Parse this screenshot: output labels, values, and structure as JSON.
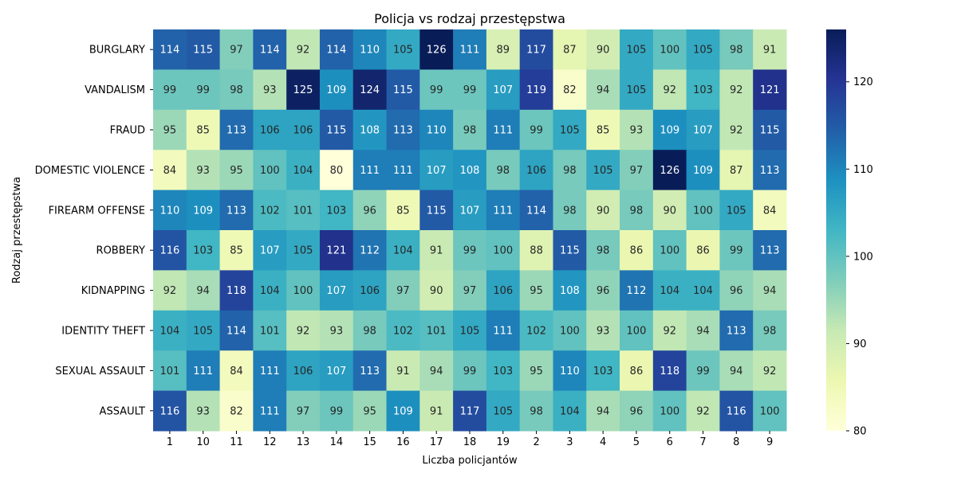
{
  "chart_data": {
    "type": "heatmap",
    "title": "Policja vs rodzaj przestępstwa",
    "xlabel": "Liczba policjantów",
    "ylabel": "Rodzaj przestępstwa",
    "x": [
      "1",
      "10",
      "11",
      "12",
      "13",
      "14",
      "15",
      "16",
      "17",
      "18",
      "19",
      "2",
      "3",
      "4",
      "5",
      "6",
      "7",
      "8",
      "9"
    ],
    "y": [
      "BURGLARY",
      "VANDALISM",
      "FRAUD",
      "DOMESTIC VIOLENCE",
      "FIREARM OFFENSE",
      "ROBBERY",
      "KIDNAPPING",
      "IDENTITY THEFT",
      "SEXUAL ASSAULT",
      "ASSAULT"
    ],
    "values": [
      [
        114,
        115,
        97,
        114,
        92,
        114,
        110,
        105,
        126,
        111,
        89,
        117,
        87,
        90,
        105,
        100,
        105,
        98,
        91
      ],
      [
        99,
        99,
        98,
        93,
        125,
        109,
        124,
        115,
        99,
        99,
        107,
        119,
        82,
        94,
        105,
        92,
        103,
        92,
        121
      ],
      [
        95,
        85,
        113,
        106,
        106,
        115,
        108,
        113,
        110,
        98,
        111,
        99,
        105,
        85,
        93,
        109,
        107,
        92,
        115
      ],
      [
        84,
        93,
        95,
        100,
        104,
        80,
        111,
        111,
        107,
        108,
        98,
        106,
        98,
        105,
        97,
        126,
        109,
        87,
        113
      ],
      [
        110,
        109,
        113,
        102,
        101,
        103,
        96,
        85,
        115,
        107,
        111,
        114,
        98,
        90,
        98,
        90,
        100,
        105,
        84
      ],
      [
        116,
        103,
        85,
        107,
        105,
        121,
        112,
        104,
        91,
        99,
        100,
        88,
        115,
        98,
        86,
        100,
        86,
        99,
        113
      ],
      [
        92,
        94,
        118,
        104,
        100,
        107,
        106,
        97,
        90,
        97,
        106,
        95,
        108,
        96,
        112,
        104,
        104,
        96,
        94
      ],
      [
        104,
        105,
        114,
        101,
        92,
        93,
        98,
        102,
        101,
        105,
        111,
        102,
        100,
        93,
        100,
        92,
        94,
        113,
        98
      ],
      [
        101,
        111,
        84,
        111,
        106,
        107,
        113,
        91,
        94,
        99,
        103,
        95,
        110,
        103,
        86,
        118,
        99,
        94,
        92
      ],
      [
        116,
        93,
        82,
        111,
        97,
        99,
        95,
        109,
        91,
        117,
        105,
        98,
        104,
        94,
        96,
        100,
        92,
        116,
        100
      ]
    ],
    "colormap": "YlGnBu",
    "vmin": 80,
    "vmax": 126,
    "colorbar_ticks": [
      "80",
      "90",
      "100",
      "110",
      "120"
    ],
    "colorbar_tick_values": [
      80,
      90,
      100,
      110,
      120
    ]
  }
}
